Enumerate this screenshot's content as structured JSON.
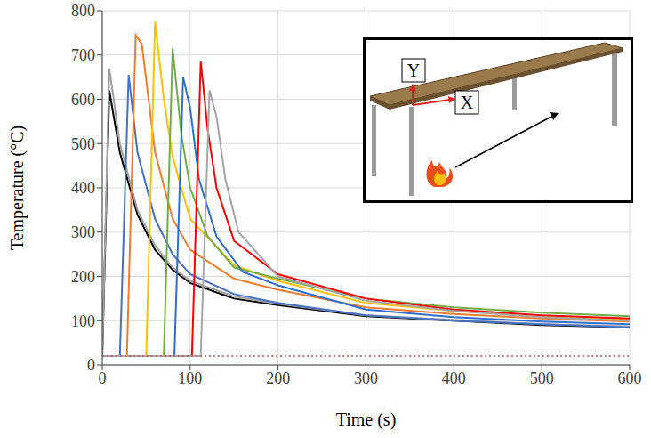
{
  "chart_data": {
    "type": "line",
    "xlabel": "Time (s)",
    "ylabel": "Temperature (°C)",
    "xlim": [
      0,
      600
    ],
    "xticks": [
      0,
      100,
      200,
      300,
      400,
      500,
      600
    ],
    "ylim": [
      0,
      800
    ],
    "yticks": [
      0,
      100,
      200,
      300,
      400,
      500,
      600,
      700,
      800
    ],
    "grid": true,
    "series": [
      {
        "color": "#000000",
        "line_style": "solid",
        "x": [
          0,
          8,
          20,
          40,
          60,
          80,
          100,
          150,
          200,
          300,
          400,
          500,
          600
        ],
        "values": [
          20,
          620,
          480,
          340,
          260,
          215,
          185,
          150,
          135,
          110,
          100,
          90,
          85
        ]
      },
      {
        "color": "#a0a0a0",
        "line_style": "solid",
        "x": [
          0,
          8,
          20,
          40,
          60,
          80,
          100,
          150,
          200,
          300,
          400,
          500,
          600
        ],
        "values": [
          20,
          670,
          500,
          350,
          270,
          220,
          190,
          155,
          138,
          112,
          102,
          92,
          87
        ]
      },
      {
        "color": "#4472c4",
        "line_style": "solid",
        "x": [
          0,
          20,
          30,
          40,
          60,
          80,
          100,
          150,
          200,
          300,
          400,
          500,
          600
        ],
        "values": [
          20,
          20,
          655,
          480,
          330,
          250,
          205,
          160,
          140,
          112,
          100,
          92,
          85
        ]
      },
      {
        "color": "#ed7d31",
        "line_style": "solid",
        "x": [
          0,
          28,
          38,
          45,
          60,
          80,
          100,
          150,
          200,
          300,
          400,
          500,
          600
        ],
        "values": [
          20,
          20,
          745,
          725,
          480,
          330,
          260,
          195,
          170,
          130,
          115,
          105,
          98
        ]
      },
      {
        "color": "#ffc000",
        "line_style": "solid",
        "x": [
          0,
          50,
          60,
          70,
          80,
          100,
          150,
          200,
          300,
          400,
          500,
          600
        ],
        "values": [
          20,
          20,
          775,
          600,
          470,
          330,
          225,
          190,
          140,
          122,
          110,
          102
        ]
      },
      {
        "color": "#70ad47",
        "line_style": "solid",
        "x": [
          0,
          70,
          80,
          90,
          100,
          120,
          150,
          200,
          300,
          400,
          500,
          600
        ],
        "values": [
          20,
          20,
          715,
          520,
          400,
          290,
          220,
          195,
          150,
          130,
          118,
          110
        ]
      },
      {
        "color": "#2f6fd0",
        "line_style": "solid",
        "x": [
          0,
          82,
          92,
          100,
          110,
          130,
          160,
          200,
          300,
          400,
          500,
          600
        ],
        "values": [
          20,
          20,
          650,
          580,
          420,
          290,
          210,
          180,
          125,
          108,
          98,
          92
        ]
      },
      {
        "color": "#ff0000",
        "line_style": "solid",
        "x": [
          0,
          102,
          112,
          120,
          130,
          150,
          200,
          300,
          400,
          500,
          600
        ],
        "values": [
          20,
          20,
          685,
          530,
          400,
          280,
          205,
          150,
          125,
          112,
          105
        ]
      },
      {
        "color": "#a6a6a6",
        "line_style": "solid",
        "x": [
          0,
          112,
          122,
          130,
          140,
          155,
          200,
          300,
          400,
          500,
          600
        ],
        "values": [
          20,
          20,
          620,
          560,
          420,
          300,
          200,
          145,
          122,
          108,
          100
        ]
      },
      {
        "color": "#c0504d",
        "line_style": "dotted",
        "x": [
          0,
          600
        ],
        "values": [
          20,
          20
        ]
      }
    ]
  },
  "inset": {
    "y_label": "Y",
    "x_label": "X"
  }
}
